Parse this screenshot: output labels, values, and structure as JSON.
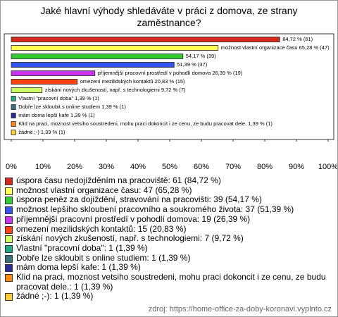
{
  "chart_data": {
    "type": "hbar",
    "title": "Jaké hlavní výhody shledáváte v práci z domova, ze strany zaměstnance?",
    "categories": [
      "úspora času nedojížděním na pracoviště: 61 (84,72 %)",
      "možnost vlastní organizace času: 47 (65,28 %)",
      "úspora peněz za dojíždění, stravování na pracovišti: 39 (54,17 %)",
      "možnost lepšího skloubení pracovního a soukromého života: 37 (51,39 %)",
      "příjemnější pracovní prostředí v pohodlí domova: 19 (26,39 %)",
      "omezení mezilidských kontaktů: 15 (20,83 %)",
      "získání nových zkušeností, např. s technologiemi: 7 (9,72 %)",
      "Vlastní \"pracovní doba\": 1 (1,39 %)",
      "Dobře lze skloubit s online studiem: 1 (1,39 %)",
      "mám doma lepší kafe: 1 (1,39 %)",
      "Klid na praci, moznost vetsiho soustredeni, mohu praci dokoncit i ze cenu, ze budu pracovat dele.: 1 (1,39 %)",
      "žádné ;-): 1 (1,39 %)"
    ],
    "values": [
      84.72,
      65.28,
      54.17,
      51.39,
      26.39,
      20.83,
      9.72,
      1.39,
      1.39,
      1.39,
      1.39,
      1.39
    ],
    "value_labels": [
      "84,72 % (61)",
      "možnost vlastní organizace času 65,28 % (47)",
      "54,17 % (39)",
      "51,39 % (37)",
      "příjemnější pracovní prostředí v pohodlí domova 26,39 % (19)",
      "omezení mezilidských kontaktů 20,83 % (15)",
      "získání nových zkušeností, např. s technologiemi 9,72 % (7)",
      "Vlastní \"pracovní doba\" 1,39 % (1)",
      "Dobře lze skloubit s online studiem 1,39 % (1)",
      "mám doma lepší kafe 1,39 % (1)",
      "Klid na praci, moznost vetsiho soustredeni, mohu praci dokoncit i ze cenu, ze budu pracovat dele. 1,39 % (1)",
      "žádné ;-) 1,39 % (1)"
    ],
    "colors": [
      "#d42a1e",
      "#ffff55",
      "#33cc33",
      "#3355ee",
      "#cc33ee",
      "#ff4411",
      "#ccff66",
      "#22aa88",
      "#3a6f80",
      "#2a2a99",
      "#ff8811",
      "#ffcc33"
    ],
    "xlim": [
      0,
      100
    ],
    "xticks": [
      {
        "value": 0,
        "label": "0%"
      },
      {
        "value": 10,
        "label": "10%"
      },
      {
        "value": 20,
        "label": "20%"
      },
      {
        "value": 30,
        "label": "30%"
      },
      {
        "value": 40,
        "label": "40%"
      },
      {
        "value": 50,
        "label": "50%"
      },
      {
        "value": 60,
        "label": "60%"
      },
      {
        "value": 70,
        "label": "70%"
      },
      {
        "value": 80,
        "label": "80%"
      },
      {
        "value": 90,
        "label": "90%"
      },
      {
        "value": 100,
        "label": "100%"
      }
    ],
    "source": "zdroj: https://home-office-za-doby-koronavi.vyplnto.cz"
  }
}
